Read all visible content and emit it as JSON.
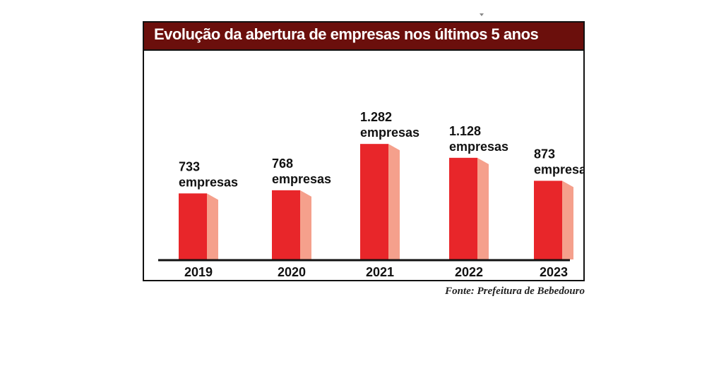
{
  "chart_data": {
    "type": "bar",
    "title": "Evolução da abertura de empresas nos últimos 5 anos",
    "categories": [
      "2019",
      "2020",
      "2021",
      "2022",
      "2023"
    ],
    "values": [
      733,
      768,
      1282,
      1128,
      873
    ],
    "data_labels": [
      [
        "733",
        "empresas"
      ],
      [
        "768",
        "empresas"
      ],
      [
        "1.282",
        "empresas"
      ],
      [
        "1.128",
        "empresas"
      ],
      [
        "873",
        "empresas"
      ]
    ],
    "xlabel": "",
    "ylabel": "",
    "ylim": [
      0,
      1400
    ],
    "grid": false,
    "legend": "none"
  },
  "source": "Fonte: Prefeitura de Bebedouro",
  "colors": {
    "header": "#6b0f0c",
    "bar_front": "#e8262a",
    "bar_side": "#f5a08c",
    "text": "#111111"
  }
}
